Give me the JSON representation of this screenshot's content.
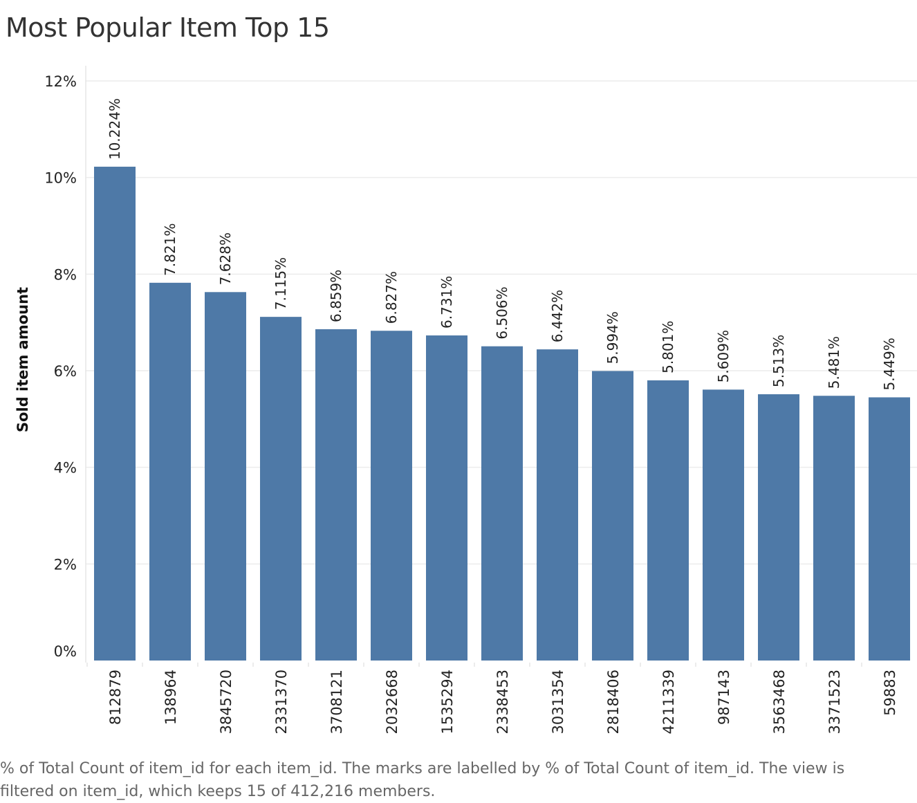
{
  "chart_data": {
    "type": "bar",
    "title": "Most Popular Item Top 15",
    "xlabel": "",
    "ylabel": "Sold item amount",
    "ylim": [
      0,
      12
    ],
    "yticks": [
      "0%",
      "2%",
      "4%",
      "6%",
      "8%",
      "10%",
      "12%"
    ],
    "ytick_values": [
      0,
      2,
      4,
      6,
      8,
      10,
      12
    ],
    "categories": [
      "812879",
      "138964",
      "3845720",
      "2331370",
      "3708121",
      "2032668",
      "1535294",
      "2338453",
      "3031354",
      "2818406",
      "4211339",
      "987143",
      "3563468",
      "3371523",
      "59883"
    ],
    "values": [
      10.224,
      7.821,
      7.628,
      7.115,
      6.859,
      6.827,
      6.731,
      6.506,
      6.442,
      5.994,
      5.801,
      5.609,
      5.513,
      5.481,
      5.449
    ],
    "value_labels": [
      "10.224%",
      "7.821%",
      "7.628%",
      "7.115%",
      "6.859%",
      "6.827%",
      "6.731%",
      "6.506%",
      "6.442%",
      "5.994%",
      "5.801%",
      "5.609%",
      "5.513%",
      "5.481%",
      "5.449%"
    ],
    "bar_color": "#4e79a7",
    "grid": true,
    "legend": "none"
  },
  "caption": "% of Total Count of item_id for each item_id.  The marks are labelled by % of Total Count of item_id. The view is filtered on item_id, which keeps 15 of 412,216 members."
}
